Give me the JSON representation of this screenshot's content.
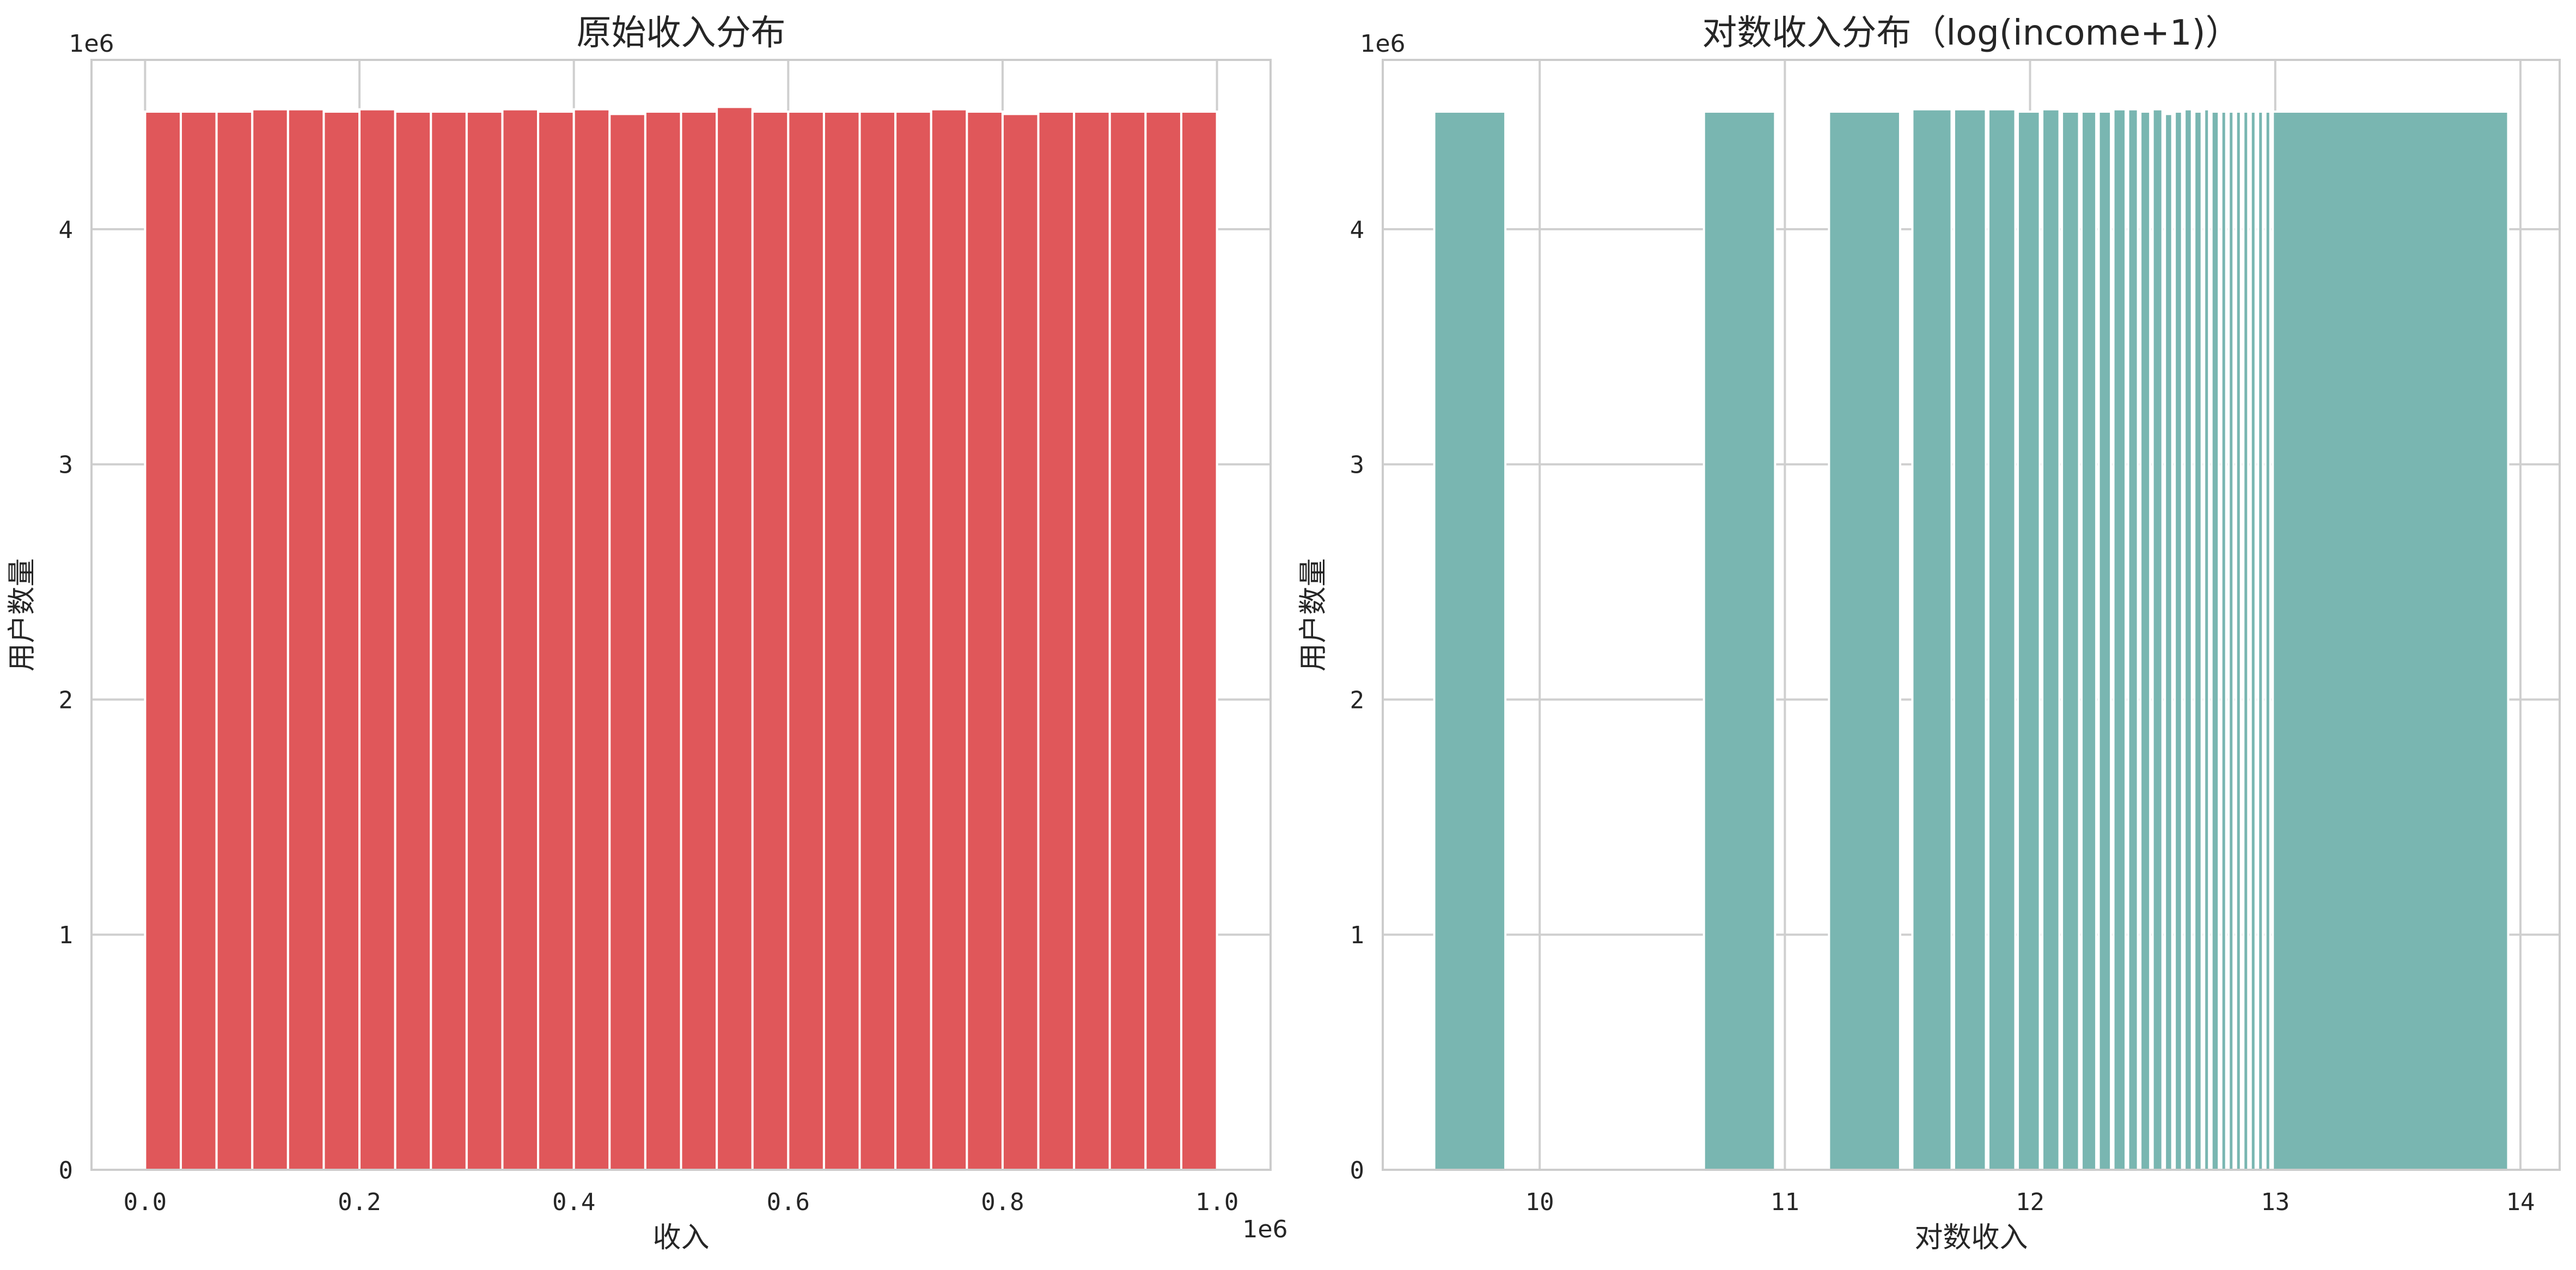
{
  "chart_data": [
    {
      "type": "bar",
      "title": "原始收入分布",
      "xlabel": "收入",
      "ylabel": "用户数量",
      "x_offset_label": "1e6",
      "y_offset_label": "1e6",
      "color": "#e0575a",
      "xlim": [
        -0.05,
        1.05
      ],
      "ylim": [
        0,
        4.72
      ],
      "x_ticks": [
        0.0,
        0.2,
        0.4,
        0.6,
        0.8,
        1.0
      ],
      "x_tick_labels": [
        "0.0",
        "0.2",
        "0.4",
        "0.6",
        "0.8",
        "1.0"
      ],
      "y_ticks": [
        0,
        1,
        2,
        3,
        4
      ],
      "y_tick_labels": [
        "0",
        "1",
        "2",
        "3",
        "4"
      ],
      "grid": true,
      "bin_start": 0.0,
      "bin_end": 1.0,
      "values": [
        4.5,
        4.5,
        4.5,
        4.51,
        4.51,
        4.5,
        4.51,
        4.5,
        4.5,
        4.5,
        4.51,
        4.5,
        4.51,
        4.49,
        4.5,
        4.5,
        4.52,
        4.5,
        4.5,
        4.5,
        4.5,
        4.5,
        4.51,
        4.5,
        4.49,
        4.5,
        4.5,
        4.5,
        4.5,
        4.5
      ]
    },
    {
      "type": "bar",
      "title": "对数收入分布（log(income+1)）",
      "xlabel": "对数收入",
      "ylabel": "用户数量",
      "y_offset_label": "1e6",
      "color": "#79b6b1",
      "xlim": [
        9.36,
        14.16
      ],
      "ylim": [
        0,
        4.72
      ],
      "x_ticks": [
        10,
        11,
        12,
        13,
        14
      ],
      "x_tick_labels": [
        "10",
        "11",
        "12",
        "13",
        "14"
      ],
      "y_ticks": [
        0,
        1,
        2,
        3,
        4
      ],
      "y_tick_labels": [
        "0",
        "1",
        "2",
        "3",
        "4"
      ],
      "grid": true,
      "bins": [
        [
          9.57,
          9.86,
          4.5
        ],
        [
          10.67,
          10.96,
          4.5
        ],
        [
          11.18,
          11.47,
          4.5
        ],
        [
          11.52,
          11.68,
          4.51
        ],
        [
          11.69,
          11.82,
          4.51
        ],
        [
          11.83,
          11.94,
          4.51
        ],
        [
          11.95,
          12.04,
          4.5
        ],
        [
          12.05,
          12.12,
          4.51
        ],
        [
          12.13,
          12.2,
          4.5
        ],
        [
          12.21,
          12.27,
          4.5
        ],
        [
          12.28,
          12.33,
          4.5
        ],
        [
          12.34,
          12.39,
          4.51
        ],
        [
          12.4,
          12.44,
          4.51
        ],
        [
          12.45,
          12.49,
          4.5
        ],
        [
          12.5,
          12.54,
          4.51
        ],
        [
          12.55,
          12.58,
          4.49
        ],
        [
          12.59,
          12.62,
          4.5
        ],
        [
          12.63,
          12.66,
          4.51
        ],
        [
          12.67,
          12.7,
          4.5
        ],
        [
          12.71,
          12.73,
          4.51
        ],
        [
          12.74,
          12.77,
          4.5
        ],
        [
          12.78,
          12.8,
          4.5
        ],
        [
          12.81,
          12.83,
          4.5
        ],
        [
          12.84,
          12.86,
          4.5
        ],
        [
          12.87,
          12.89,
          4.5
        ],
        [
          12.9,
          12.92,
          4.5
        ],
        [
          12.93,
          12.95,
          4.5
        ],
        [
          12.96,
          12.98,
          4.5
        ],
        [
          12.99,
          13.95,
          4.5
        ]
      ]
    }
  ]
}
